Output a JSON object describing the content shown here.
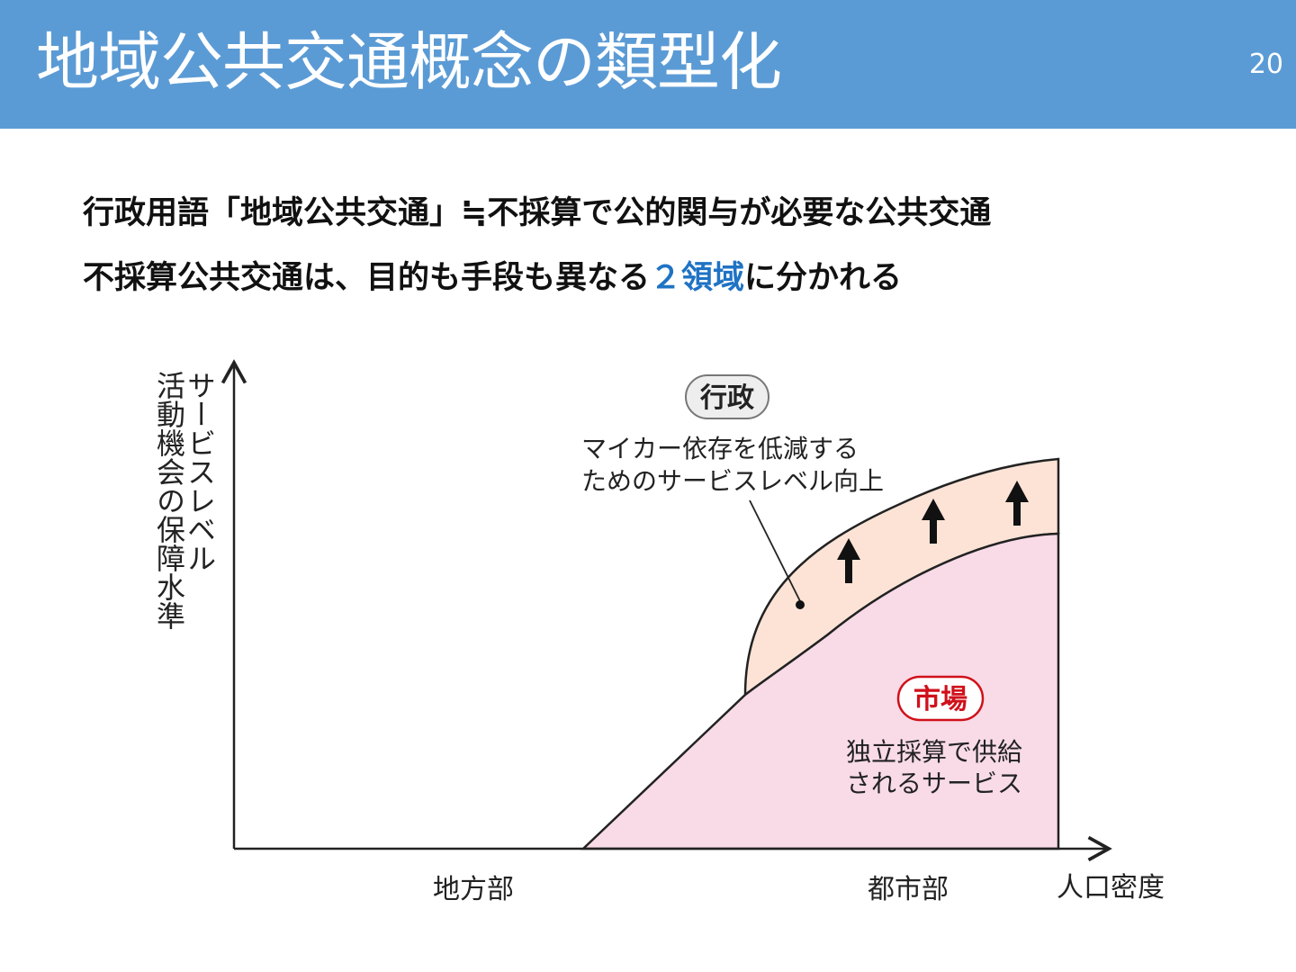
{
  "slide": {
    "title": "地域公共交通概念の類型化",
    "page_number": "20"
  },
  "bullets": {
    "line1": "行政用語「地域公共交通」≒不採算で公的関与が必要な公共交通",
    "line2_prefix": "不採算公共交通は、目的も手段も異なる",
    "line2_accent": "２領域",
    "line2_suffix": "に分かれる"
  },
  "diagram": {
    "y_axis_label_1": "サービスレベル",
    "y_axis_label_2": "活動機会の保障水準",
    "x_axis_label": "人口密度",
    "x_tick_rural": "地方部",
    "x_tick_urban": "都市部",
    "gov_badge": "行政",
    "gov_desc_line1": "マイカー依存を低減する",
    "gov_desc_line2": "ためのサービスレベル向上",
    "market_badge": "市場",
    "market_desc_line1": "独立採算で供給",
    "market_desc_line2": "されるサービス"
  },
  "colors": {
    "header": "#5b9bd5",
    "accent": "#1f73c4",
    "market_fill": "#f8dbe7",
    "gov_fill": "#fce3d6",
    "market_badge_border": "#d0101a",
    "gov_badge_fill": "#eeeeee"
  },
  "icons": {
    "arrow": "up-arrow-icon"
  }
}
